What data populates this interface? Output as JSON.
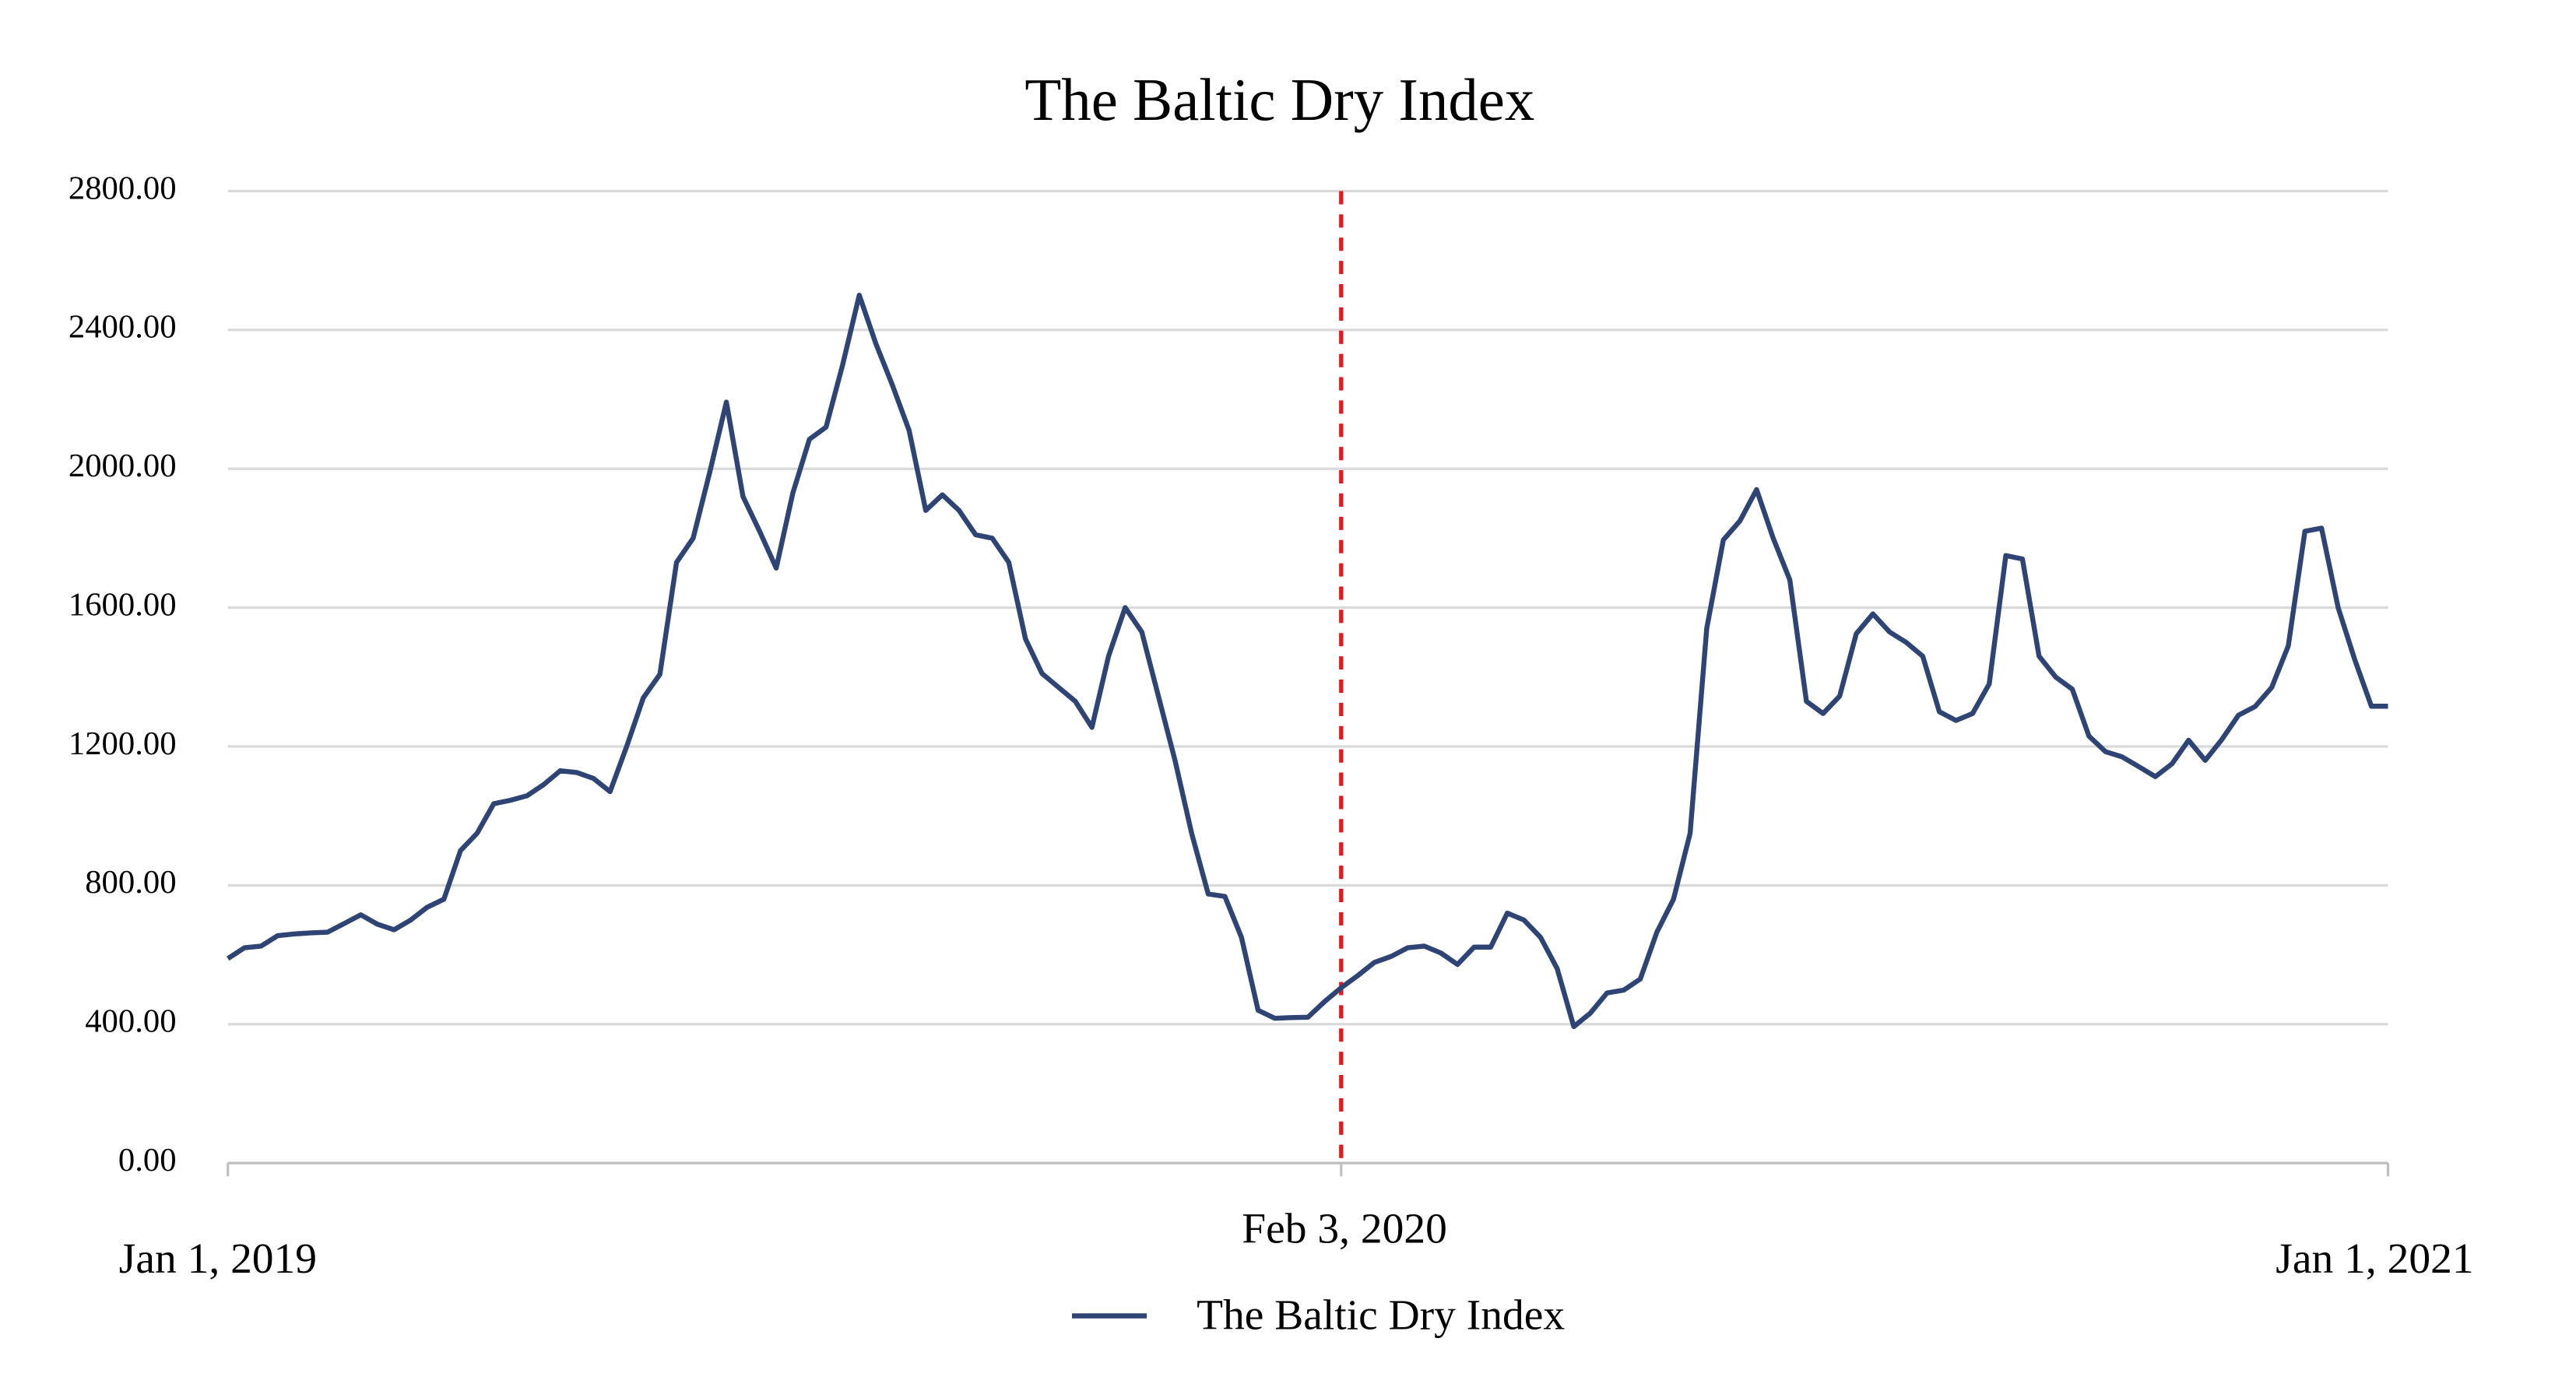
{
  "chart_data": {
    "type": "line",
    "title": "The Baltic Dry Index",
    "categories": [
      "Jan 1, 2019",
      null,
      null,
      null,
      null,
      null,
      null,
      null,
      null,
      null,
      null,
      null,
      null,
      null,
      null,
      null,
      null,
      null,
      null,
      null,
      null,
      null,
      null,
      null,
      null,
      null,
      null,
      null,
      null,
      null,
      null,
      null,
      null,
      null,
      null,
      null,
      null,
      null,
      null,
      null,
      null,
      null,
      null,
      null,
      null,
      null,
      null,
      null,
      null,
      null,
      null,
      null,
      null,
      null,
      null,
      null,
      null,
      null,
      null,
      null,
      null,
      null,
      null,
      null,
      null,
      null,
      null,
      "Feb 3, 2020",
      null,
      null,
      null,
      null,
      null,
      null,
      null,
      null,
      null,
      null,
      null,
      null,
      null,
      null,
      null,
      null,
      null,
      null,
      null,
      null,
      null,
      null,
      null,
      null,
      null,
      null,
      null,
      null,
      null,
      null,
      null,
      null,
      null,
      null,
      null,
      null,
      null,
      null,
      null,
      null,
      null,
      null,
      null,
      null,
      null,
      null,
      null,
      null,
      null,
      null,
      null,
      null,
      null,
      null,
      null,
      null,
      null,
      null,
      null,
      null,
      null,
      null,
      "Jan 1, 2021"
    ],
    "series": [
      {
        "name": "The Baltic Dry Index",
        "color": "#2e4475",
        "values": [
          589,
          620,
          625,
          655,
          660,
          663,
          665,
          690,
          715,
          688,
          672,
          700,
          737,
          760,
          900,
          950,
          1035,
          1045,
          1058,
          1090,
          1130,
          1125,
          1108,
          1070,
          1200,
          1340,
          1408,
          1730,
          1800,
          1990,
          2192,
          1920,
          1820,
          1714,
          1930,
          2085,
          2120,
          2300,
          2500,
          2360,
          2240,
          2110,
          1880,
          1925,
          1880,
          1810,
          1800,
          1730,
          1510,
          1410,
          1370,
          1330,
          1255,
          1460,
          1600,
          1530,
          1345,
          1160,
          950,
          775,
          768,
          650,
          440,
          417,
          419,
          420,
          465,
          505,
          540,
          578,
          595,
          620,
          625,
          605,
          572,
          622,
          622,
          720,
          700,
          650,
          560,
          393,
          432,
          490,
          498,
          530,
          665,
          760,
          950,
          1540,
          1795,
          1850,
          1940,
          1800,
          1680,
          1330,
          1295,
          1345,
          1525,
          1582,
          1530,
          1500,
          1460,
          1300,
          1275,
          1295,
          1380,
          1750,
          1740,
          1460,
          1400,
          1365,
          1230,
          1185,
          1170,
          1142,
          1113,
          1150,
          1218,
          1160,
          1220,
          1290,
          1315,
          1370,
          1490,
          1820,
          1829,
          1600,
          1450,
          1316,
          1316
        ]
      }
    ],
    "ylim": [
      0,
      2800
    ],
    "yticks": [
      {
        "value": 0,
        "label": "0.00"
      },
      {
        "value": 400,
        "label": "400.00"
      },
      {
        "value": 800,
        "label": "800.00"
      },
      {
        "value": 1200,
        "label": "1200.00"
      },
      {
        "value": 1600,
        "label": "1600.00"
      },
      {
        "value": 2000,
        "label": "2000.00"
      },
      {
        "value": 2400,
        "label": "2400.00"
      },
      {
        "value": 2800,
        "label": "2800.00"
      }
    ],
    "grid": true,
    "legend": "bottom"
  }
}
